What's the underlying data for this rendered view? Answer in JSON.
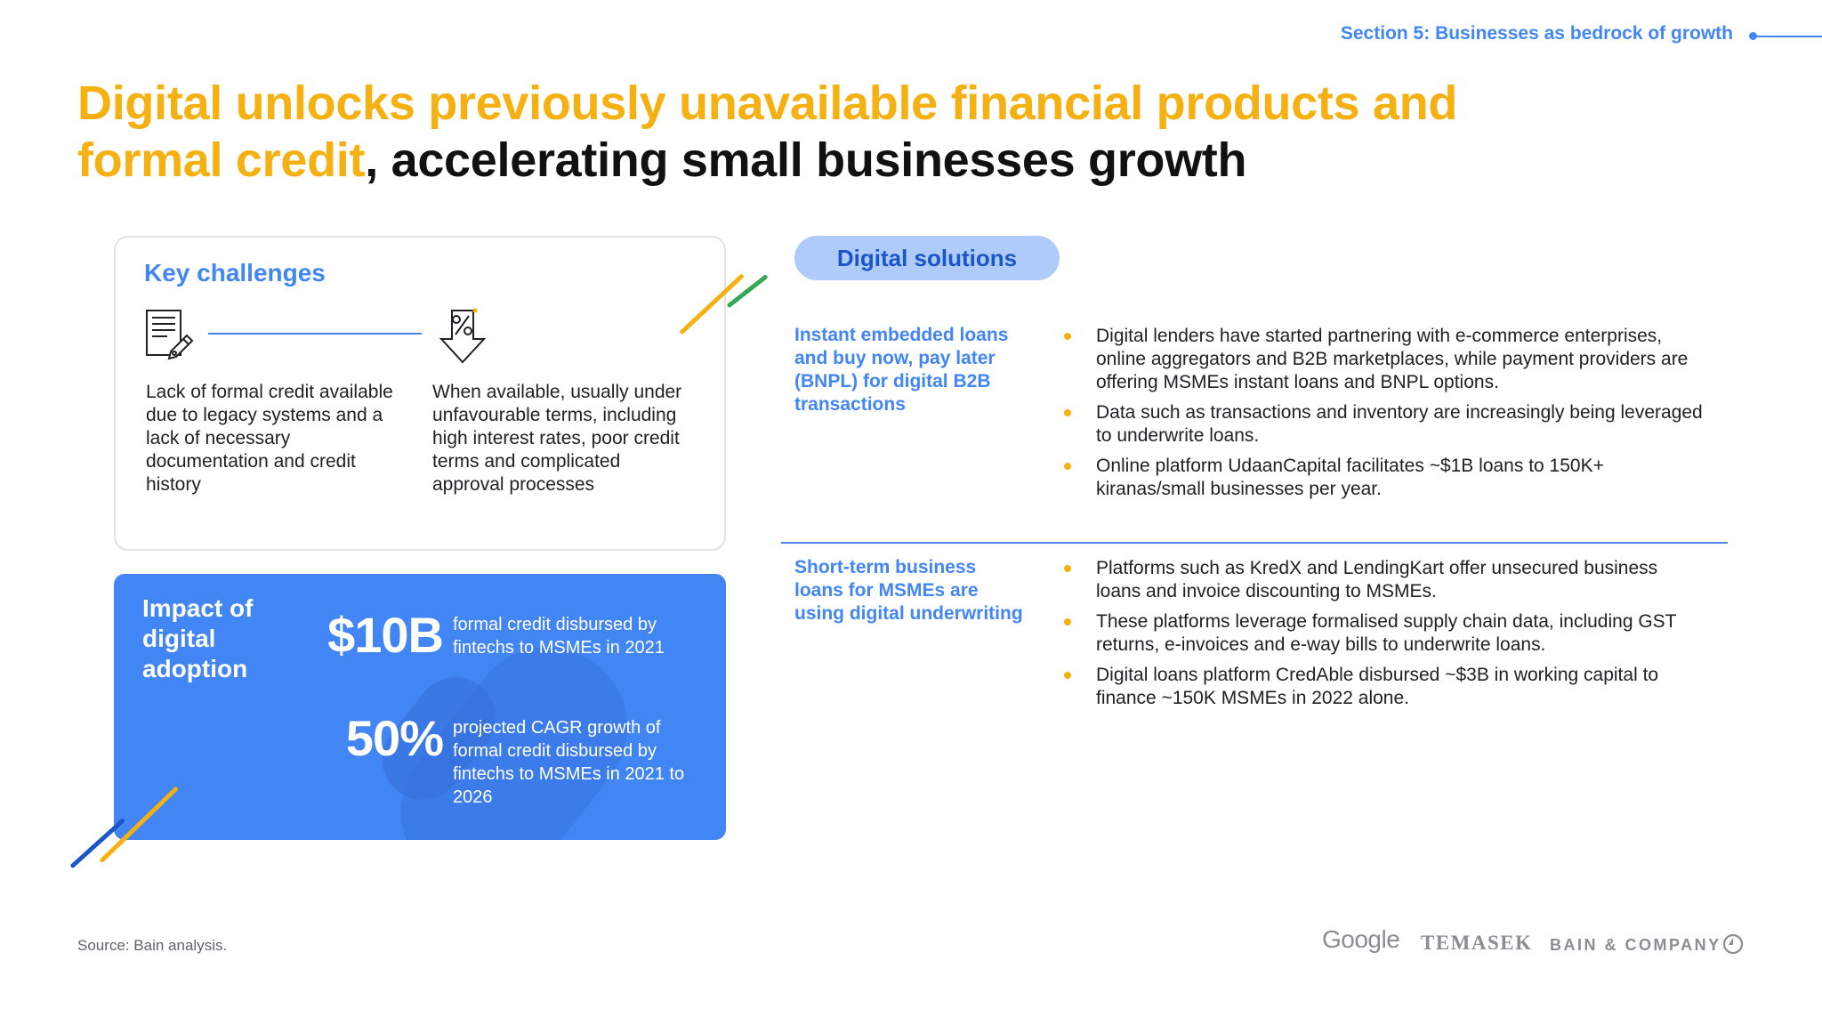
{
  "header": {
    "section": "Section 5: Businesses as bedrock of growth",
    "title_highlight": "Digital unlocks previously unavailable financial products and formal credit",
    "title_rest": ", accelerating small businesses growth"
  },
  "challenges": {
    "heading": "Key challenges",
    "items": [
      {
        "icon": "document-pen-icon",
        "text": "Lack of formal credit available due to legacy systems and a lack of necessary documentation and credit history"
      },
      {
        "icon": "percent-down-arrow-icon",
        "text": "When available, usually under unfavourable terms, including high interest rates, poor credit terms and complicated approval processes"
      }
    ]
  },
  "impact": {
    "heading": "Impact of digital adoption",
    "stats": [
      {
        "value": "$10B",
        "description": "formal credit disbursed by fintechs to MSMEs in 2021"
      },
      {
        "value": "50%",
        "description": "projected CAGR growth of formal credit disbursed by fintechs to MSMEs in 2021 to 2026"
      }
    ]
  },
  "solutions": {
    "label": "Digital solutions",
    "rows": [
      {
        "heading": "Instant embedded loans and buy now, pay later (BNPL) for digital B2B transactions",
        "bullets": [
          "Digital lenders have started partnering with e-commerce enterprises, online aggregators and B2B marketplaces, while payment providers are offering MSMEs instant loans and BNPL options.",
          "Data such as transactions and inventory are increasingly being leveraged to underwrite loans.",
          "Online platform UdaanCapital facilitates ~$1B loans to 150K+ kiranas/small businesses per year."
        ]
      },
      {
        "heading": "Short-term business loans for MSMEs are using digital underwriting",
        "bullets": [
          "Platforms such as KredX and LendingKart offer unsecured business loans and invoice discounting to MSMEs.",
          "These platforms leverage formalised supply chain data, including GST returns, e-invoices and e-way bills to underwrite loans.",
          "Digital loans platform CredAble disbursed ~$3B in working capital to finance ~150K MSMEs in 2022 alone."
        ]
      }
    ]
  },
  "footer": {
    "source": "Source: Bain analysis.",
    "logos": [
      "Google",
      "TEMASEK",
      "BAIN & COMPANY"
    ]
  },
  "colors": {
    "accent_yellow": "#f5b011",
    "accent_blue": "#4285f4",
    "pill_blue": "#aecbfa",
    "stripe_green": "#34a853",
    "stripe_navy": "#1a56c8"
  }
}
